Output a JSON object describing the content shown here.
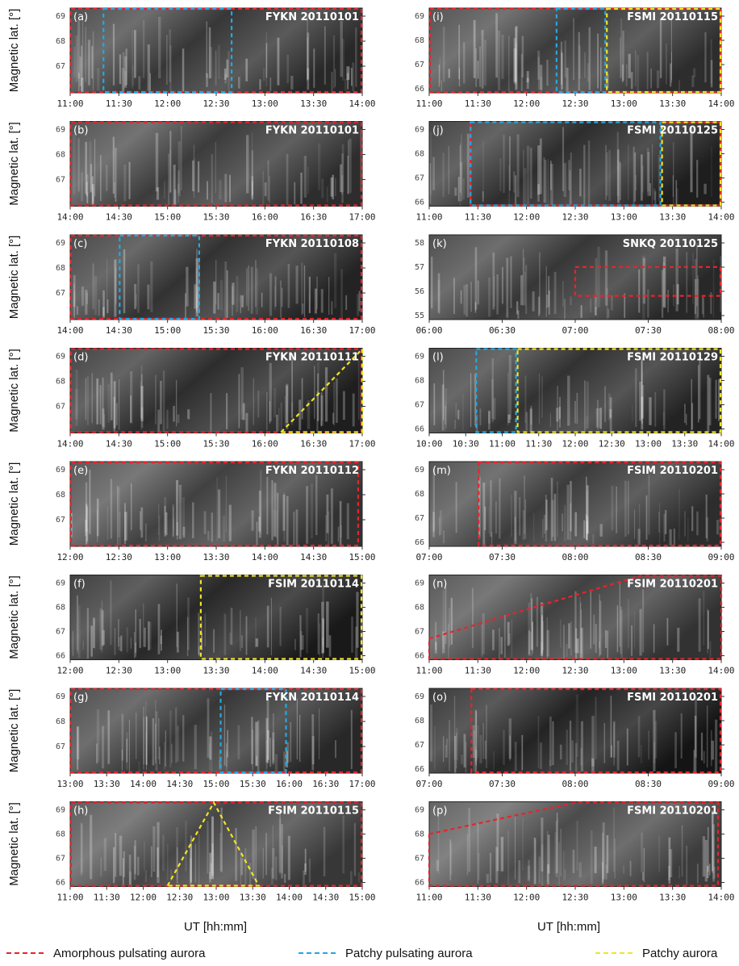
{
  "colors": {
    "amorphous": "#e8232b",
    "patchy_pulsating": "#23a8e0",
    "patchy": "#f2e424"
  },
  "ylabel": "Magnetic lat. [°]",
  "xlabel": "UT [hh:mm]",
  "legend": {
    "amorphous": "Amorphous pulsating aurora",
    "patchy_pulsating": "Patchy pulsating aurora",
    "patchy": "Patchy aurora"
  },
  "panels": [
    {
      "tag": "(a)",
      "title": "FYKN 20110101",
      "xticks": [
        "11:00",
        "11:30",
        "12:00",
        "12:30",
        "13:00",
        "13:30",
        "14:00"
      ],
      "yticks": [
        "69",
        "68",
        "67"
      ],
      "base": 55,
      "xrange": [
        0,
        180
      ],
      "regions": [
        {
          "kind": "amorphous",
          "shape": "rect",
          "t0": 0,
          "t1": 180
        },
        {
          "kind": "patchy_pulsating",
          "shape": "rect",
          "t0": 20,
          "t1": 100
        }
      ]
    },
    {
      "tag": "(b)",
      "title": "FYKN 20110101",
      "xticks": [
        "14:00",
        "14:30",
        "15:00",
        "15:30",
        "16:00",
        "16:30",
        "17:00"
      ],
      "yticks": [
        "69",
        "68",
        "67"
      ],
      "base": 60,
      "xrange": [
        0,
        180
      ],
      "regions": [
        {
          "kind": "amorphous",
          "shape": "rect",
          "t0": 0,
          "t1": 180
        }
      ]
    },
    {
      "tag": "(c)",
      "title": "FYKN 20110108",
      "xticks": [
        "14:00",
        "14:30",
        "15:00",
        "15:30",
        "16:00",
        "16:30",
        "17:00"
      ],
      "yticks": [
        "69",
        "68",
        "67"
      ],
      "base": 50,
      "xrange": [
        0,
        180
      ],
      "regions": [
        {
          "kind": "amorphous",
          "shape": "rect",
          "t0": 0,
          "t1": 180
        },
        {
          "kind": "patchy_pulsating",
          "shape": "rect",
          "t0": 30,
          "t1": 80
        }
      ]
    },
    {
      "tag": "(d)",
      "title": "FYKN 20110111",
      "xticks": [
        "14:00",
        "14:30",
        "15:00",
        "15:30",
        "16:00",
        "16:30",
        "17:00"
      ],
      "yticks": [
        "69",
        "68",
        "67"
      ],
      "base": 45,
      "xrange": [
        0,
        180
      ],
      "regions": [
        {
          "kind": "amorphous",
          "shape": "rect",
          "t0": 0,
          "t1": 180
        },
        {
          "kind": "patchy",
          "shape": "poly",
          "pts": [
            [
              130,
              0
            ],
            [
              180,
              1
            ],
            [
              180,
              0
            ]
          ]
        }
      ]
    },
    {
      "tag": "(e)",
      "title": "FYKN 20110112",
      "xticks": [
        "12:00",
        "12:30",
        "13:00",
        "13:30",
        "14:00",
        "14:30",
        "15:00"
      ],
      "yticks": [
        "69",
        "68",
        "67"
      ],
      "base": 65,
      "xrange": [
        0,
        180
      ],
      "regions": [
        {
          "kind": "amorphous",
          "shape": "rect",
          "t0": 0,
          "t1": 178
        }
      ]
    },
    {
      "tag": "(f)",
      "title": "FSIM 20110114",
      "xticks": [
        "12:00",
        "12:30",
        "13:00",
        "13:30",
        "14:00",
        "14:30",
        "15:00"
      ],
      "yticks": [
        "69",
        "68",
        "67",
        "66"
      ],
      "base": 40,
      "xrange": [
        0,
        180
      ],
      "regions": [
        {
          "kind": "patchy",
          "shape": "rect",
          "t0": 80,
          "t1": 180
        }
      ]
    },
    {
      "tag": "(g)",
      "title": "FYKN 20110114",
      "xticks": [
        "13:00",
        "13:30",
        "14:00",
        "14:30",
        "15:00",
        "15:30",
        "16:00",
        "16:30",
        "17:00"
      ],
      "yticks": [
        "69",
        "68",
        "67"
      ],
      "base": 55,
      "xrange": [
        0,
        240
      ],
      "regions": [
        {
          "kind": "amorphous",
          "shape": "rect",
          "t0": 0,
          "t1": 240
        },
        {
          "kind": "patchy_pulsating",
          "shape": "rect",
          "t0": 123,
          "t1": 178
        }
      ]
    },
    {
      "tag": "(h)",
      "title": "FSIM 20110115",
      "xticks": [
        "11:00",
        "11:30",
        "12:00",
        "12:30",
        "13:00",
        "13:30",
        "14:00",
        "14:30",
        "15:00"
      ],
      "yticks": [
        "69",
        "68",
        "67",
        "66"
      ],
      "base": 70,
      "xrange": [
        0,
        240
      ],
      "regions": [
        {
          "kind": "amorphous",
          "shape": "rect",
          "t0": 0,
          "t1": 240
        },
        {
          "kind": "patchy",
          "shape": "poly",
          "pts": [
            [
              80,
              0
            ],
            [
              118,
              1
            ],
            [
              155,
              0
            ]
          ]
        }
      ]
    },
    {
      "tag": "(i)",
      "title": "FSMI 20110115",
      "xticks": [
        "11:00",
        "11:30",
        "12:00",
        "12:30",
        "13:00",
        "13:30",
        "14:00"
      ],
      "yticks": [
        "69",
        "68",
        "67",
        "66"
      ],
      "base": 60,
      "xrange": [
        0,
        180
      ],
      "regions": [
        {
          "kind": "amorphous",
          "shape": "rect",
          "t0": 0,
          "t1": 180
        },
        {
          "kind": "patchy_pulsating",
          "shape": "rect",
          "t0": 78,
          "t1": 109
        },
        {
          "kind": "patchy",
          "shape": "rect",
          "t0": 109,
          "t1": 180
        }
      ]
    },
    {
      "tag": "(j)",
      "title": "FSMI 20110125",
      "xticks": [
        "11:00",
        "11:30",
        "12:00",
        "12:30",
        "13:00",
        "13:30",
        "14:00"
      ],
      "yticks": [
        "69",
        "68",
        "67",
        "66"
      ],
      "base": 45,
      "xrange": [
        0,
        180
      ],
      "regions": [
        {
          "kind": "amorphous",
          "shape": "rect",
          "t0": 25,
          "t1": 180
        },
        {
          "kind": "patchy_pulsating",
          "shape": "rect",
          "t0": 25,
          "t1": 143
        },
        {
          "kind": "patchy",
          "shape": "rect",
          "t0": 143,
          "t1": 180
        }
      ]
    },
    {
      "tag": "(k)",
      "title": "SNKQ 20110125",
      "xticks": [
        "06:00",
        "06:30",
        "07:00",
        "07:30",
        "08:00"
      ],
      "yticks": [
        "58",
        "57",
        "56",
        "55"
      ],
      "base": 55,
      "xrange": [
        0,
        120
      ],
      "regions": [
        {
          "kind": "amorphous",
          "shape": "band",
          "t0": 60,
          "t1": 120,
          "f0": 0.28,
          "f1": 0.62
        }
      ]
    },
    {
      "tag": "(l)",
      "title": "FSMI 20110129",
      "xticks": [
        "10:00",
        "10:30",
        "11:00",
        "11:30",
        "12:00",
        "12:30",
        "13:00",
        "13:30",
        "14:00"
      ],
      "yticks": [
        "69",
        "68",
        "67",
        "66"
      ],
      "base": 50,
      "xrange": [
        0,
        240
      ],
      "regions": [
        {
          "kind": "patchy_pulsating",
          "shape": "rect",
          "t0": 38,
          "t1": 72
        },
        {
          "kind": "patchy",
          "shape": "rect",
          "t0": 72,
          "t1": 240
        }
      ]
    },
    {
      "tag": "(m)",
      "title": "FSIM 20110201",
      "xticks": [
        "07:00",
        "07:30",
        "08:00",
        "08:30",
        "09:00"
      ],
      "yticks": [
        "69",
        "68",
        "67",
        "66"
      ],
      "base": 60,
      "xrange": [
        0,
        120
      ],
      "regions": [
        {
          "kind": "amorphous",
          "shape": "rect",
          "t0": 20,
          "t1": 120
        }
      ]
    },
    {
      "tag": "(n)",
      "title": "FSIM 20110201",
      "xticks": [
        "11:00",
        "11:30",
        "12:00",
        "12:30",
        "13:00",
        "13:30",
        "14:00"
      ],
      "yticks": [
        "69",
        "68",
        "67",
        "66"
      ],
      "base": 65,
      "xrange": [
        0,
        180
      ],
      "regions": [
        {
          "kind": "amorphous",
          "shape": "poly",
          "pts": [
            [
              0,
              0.25
            ],
            [
              130,
              1
            ],
            [
              180,
              1
            ],
            [
              180,
              0
            ],
            [
              0,
              0
            ]
          ]
        }
      ]
    },
    {
      "tag": "(o)",
      "title": "FSMI 20110201",
      "xticks": [
        "07:00",
        "07:30",
        "08:00",
        "08:30",
        "09:00"
      ],
      "yticks": [
        "69",
        "68",
        "67",
        "66"
      ],
      "base": 35,
      "xrange": [
        0,
        120
      ],
      "regions": [
        {
          "kind": "amorphous",
          "shape": "rect",
          "t0": 17,
          "t1": 120
        }
      ]
    },
    {
      "tag": "(p)",
      "title": "FSMI 20110201",
      "xticks": [
        "11:00",
        "11:30",
        "12:00",
        "12:30",
        "13:00",
        "13:30",
        "14:00"
      ],
      "yticks": [
        "69",
        "68",
        "67",
        "66"
      ],
      "base": 75,
      "xrange": [
        0,
        180
      ],
      "regions": [
        {
          "kind": "amorphous",
          "shape": "poly",
          "pts": [
            [
              0,
              0.62
            ],
            [
              90,
              1
            ],
            [
              178,
              1
            ],
            [
              178,
              0
            ],
            [
              0,
              0
            ]
          ]
        }
      ]
    }
  ]
}
